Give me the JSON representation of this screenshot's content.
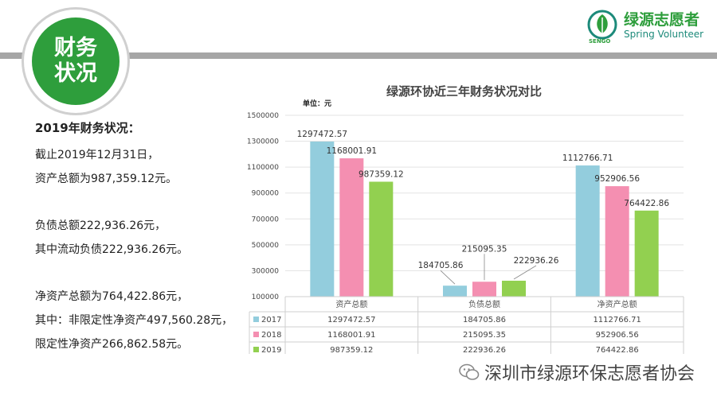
{
  "badge": {
    "line1": "财务",
    "line2": "状况"
  },
  "logo": {
    "name_cn": "绿源志愿者",
    "name_en": "Spring Volunteer",
    "mark": "SENGO"
  },
  "left_text": {
    "heading": "2019年财务状况：",
    "lines": [
      "截止2019年12月31日，",
      "资产总额为987,359.12元。",
      "",
      "负债总额222,936.26元，",
      "其中流动负债222,936.26元。",
      "",
      "净资产总额为764,422.86元，",
      "其中：非限定性净资产497,560.28元，",
      "限定性净资产266,862.58元。"
    ]
  },
  "chart_data": {
    "type": "bar",
    "title": "绿源环协近三年财务状况对比",
    "unit_label": "单位：元",
    "categories": [
      "资产总额",
      "负债总额",
      "净资产总额"
    ],
    "series": [
      {
        "name": "2017",
        "color": "#93cddd",
        "values": [
          1297472.57,
          184705.86,
          1112766.71
        ],
        "labels": [
          "1297472.57",
          "184705.86",
          "1112766.71"
        ]
      },
      {
        "name": "2018",
        "color": "#f48fb1",
        "values": [
          1168001.91,
          215095.35,
          952906.56
        ],
        "labels": [
          "1168001.91",
          "215095.35",
          "952906.56"
        ]
      },
      {
        "name": "2019",
        "color": "#92d050",
        "values": [
          987359.12,
          222936.26,
          764422.86
        ],
        "labels": [
          "987359.12",
          "222936.26",
          "764422.86"
        ]
      }
    ],
    "ylim": [
      100000,
      1500000
    ],
    "yticks": [
      "100000",
      "300000",
      "500000",
      "700000",
      "900000",
      "1100000",
      "1300000",
      "1500000"
    ],
    "grid": true,
    "legend": "data-table-left"
  },
  "footer": {
    "text": "深圳市绿源环保志愿者协会",
    "icon": "wechat-icon"
  }
}
